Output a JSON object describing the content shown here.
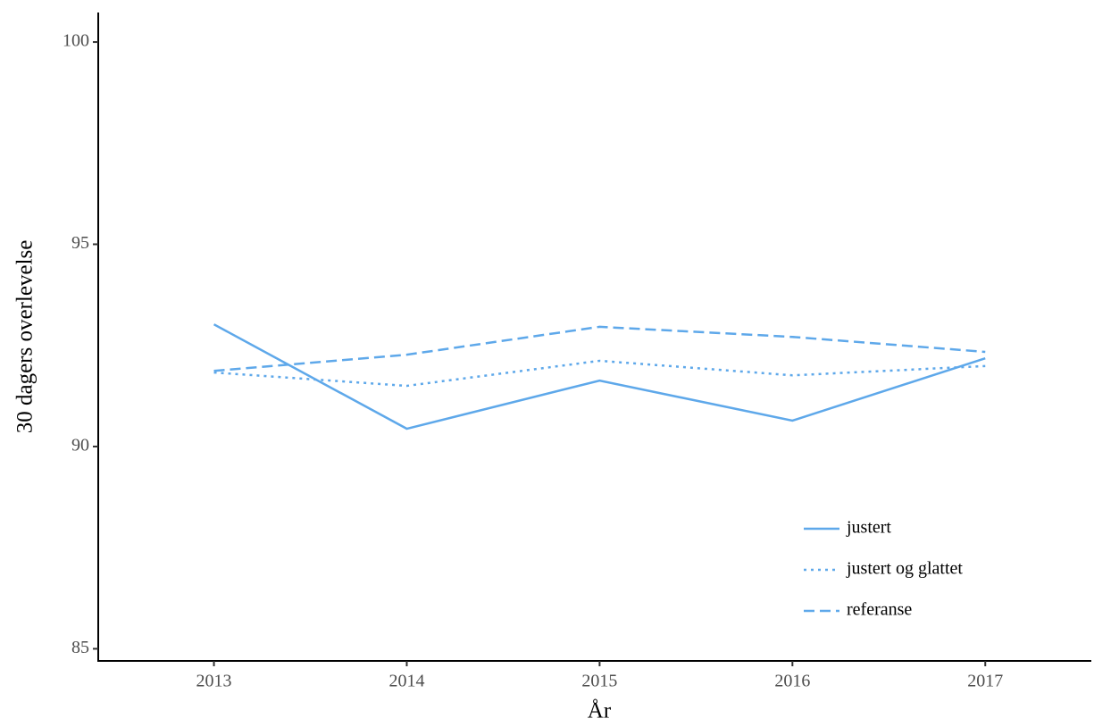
{
  "chart_data": {
    "type": "line",
    "x_label": "År",
    "y_label": "30 dagers overlevelse",
    "x": [
      2013,
      2014,
      2015,
      2016,
      2017
    ],
    "series": [
      {
        "name": "justert",
        "color": "#5ea8ea",
        "linestyle": "solid",
        "values": [
          93.02,
          90.44,
          91.63,
          90.64,
          92.18
        ]
      },
      {
        "name": "justert og glattet",
        "color": "#5ea8ea",
        "linestyle": "dotted",
        "values": [
          91.83,
          91.5,
          92.12,
          91.76,
          91.99
        ]
      },
      {
        "name": "referanse",
        "color": "#5ea8ea",
        "linestyle": "dashed",
        "values": [
          91.87,
          92.27,
          92.96,
          92.71,
          92.34
        ]
      }
    ],
    "xlim": [
      2012.4,
      2017.55
    ],
    "xticks": [
      2013,
      2014,
      2015,
      2016,
      2017
    ],
    "ylim": [
      84.7,
      100.73
    ],
    "yticks": [
      85,
      90,
      95,
      100
    ],
    "grid": false,
    "legend_position": "lower right"
  }
}
